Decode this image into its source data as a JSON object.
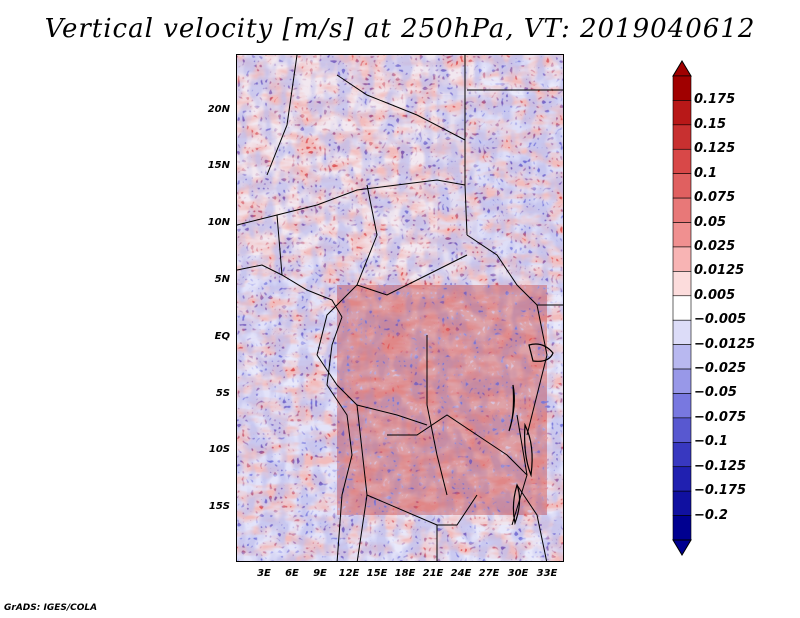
{
  "title": "Vertical velocity [m/s] at 250hPa, VT: 2019040612",
  "map": {
    "variable": "Vertical velocity",
    "units": "m/s",
    "level": "250hPa",
    "valid_time": "2019040612",
    "lat_ticks": [
      "20N",
      "15N",
      "10N",
      "5N",
      "EQ",
      "5S",
      "10S",
      "15S"
    ],
    "lon_ticks": [
      "3E",
      "6E",
      "9E",
      "12E",
      "15E",
      "18E",
      "21E",
      "24E",
      "27E",
      "30E",
      "33E"
    ],
    "lat_range": [
      -20,
      25
    ],
    "lon_range": [
      0,
      35
    ]
  },
  "colorbar": {
    "labels": [
      "0.175",
      "0.15",
      "0.125",
      "0.1",
      "0.075",
      "0.05",
      "0.025",
      "0.0125",
      "0.005",
      "−0.005",
      "−0.0125",
      "−0.025",
      "−0.05",
      "−0.075",
      "−0.1",
      "−0.125",
      "−0.175",
      "−0.2"
    ],
    "colors": [
      "#a00000",
      "#b81818",
      "#c83030",
      "#d84848",
      "#e06060",
      "#e87878",
      "#f09090",
      "#f8b4b4",
      "#fcdcdc",
      "#ffffff",
      "#dcdcf8",
      "#b8b8f0",
      "#9898e8",
      "#7878e0",
      "#5858d0",
      "#3838c0",
      "#2020b0",
      "#1010a0",
      "#000090"
    ]
  },
  "credit": "GrADS: IGES/COLA"
}
